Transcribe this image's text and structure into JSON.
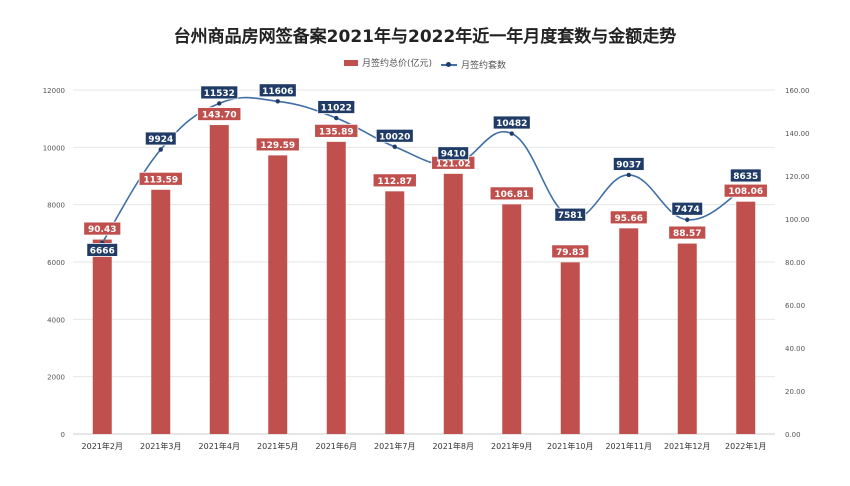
{
  "chart_data": {
    "type": "bar+line",
    "title": "台州商品房网签备案2021年与2022年近一年月度套数与金额走势",
    "categories": [
      "2021年2月",
      "2021年3月",
      "2021年4月",
      "2021年5月",
      "2021年6月",
      "2021年7月",
      "2021年8月",
      "2021年9月",
      "2021年10月",
      "2021年11月",
      "2021年12月",
      "2022年1月"
    ],
    "series": [
      {
        "name": "月签约总价(亿元)",
        "type": "bar",
        "axis": "right",
        "color": "#c0504d",
        "values": [
          90.43,
          113.59,
          143.7,
          129.59,
          135.89,
          112.87,
          121.02,
          106.81,
          79.83,
          95.66,
          88.57,
          108.06
        ]
      },
      {
        "name": "月签约套数",
        "type": "line",
        "axis": "left",
        "color": "#3f6fa6",
        "values": [
          6666,
          9924,
          11532,
          11606,
          11022,
          10020,
          9410,
          10482,
          7581,
          9037,
          7474,
          8635
        ]
      }
    ],
    "left_axis": {
      "min": 0,
      "max": 12000,
      "ticks": [
        "0",
        "2000",
        "4000",
        "6000",
        "8000",
        "10000",
        "12000"
      ]
    },
    "right_axis": {
      "min": 0,
      "max": 160,
      "ticks": [
        "0.00",
        "20.00",
        "40.00",
        "60.00",
        "80.00",
        "100.00",
        "120.00",
        "140.00",
        "160.00"
      ]
    },
    "grid": true,
    "legend": "top"
  }
}
